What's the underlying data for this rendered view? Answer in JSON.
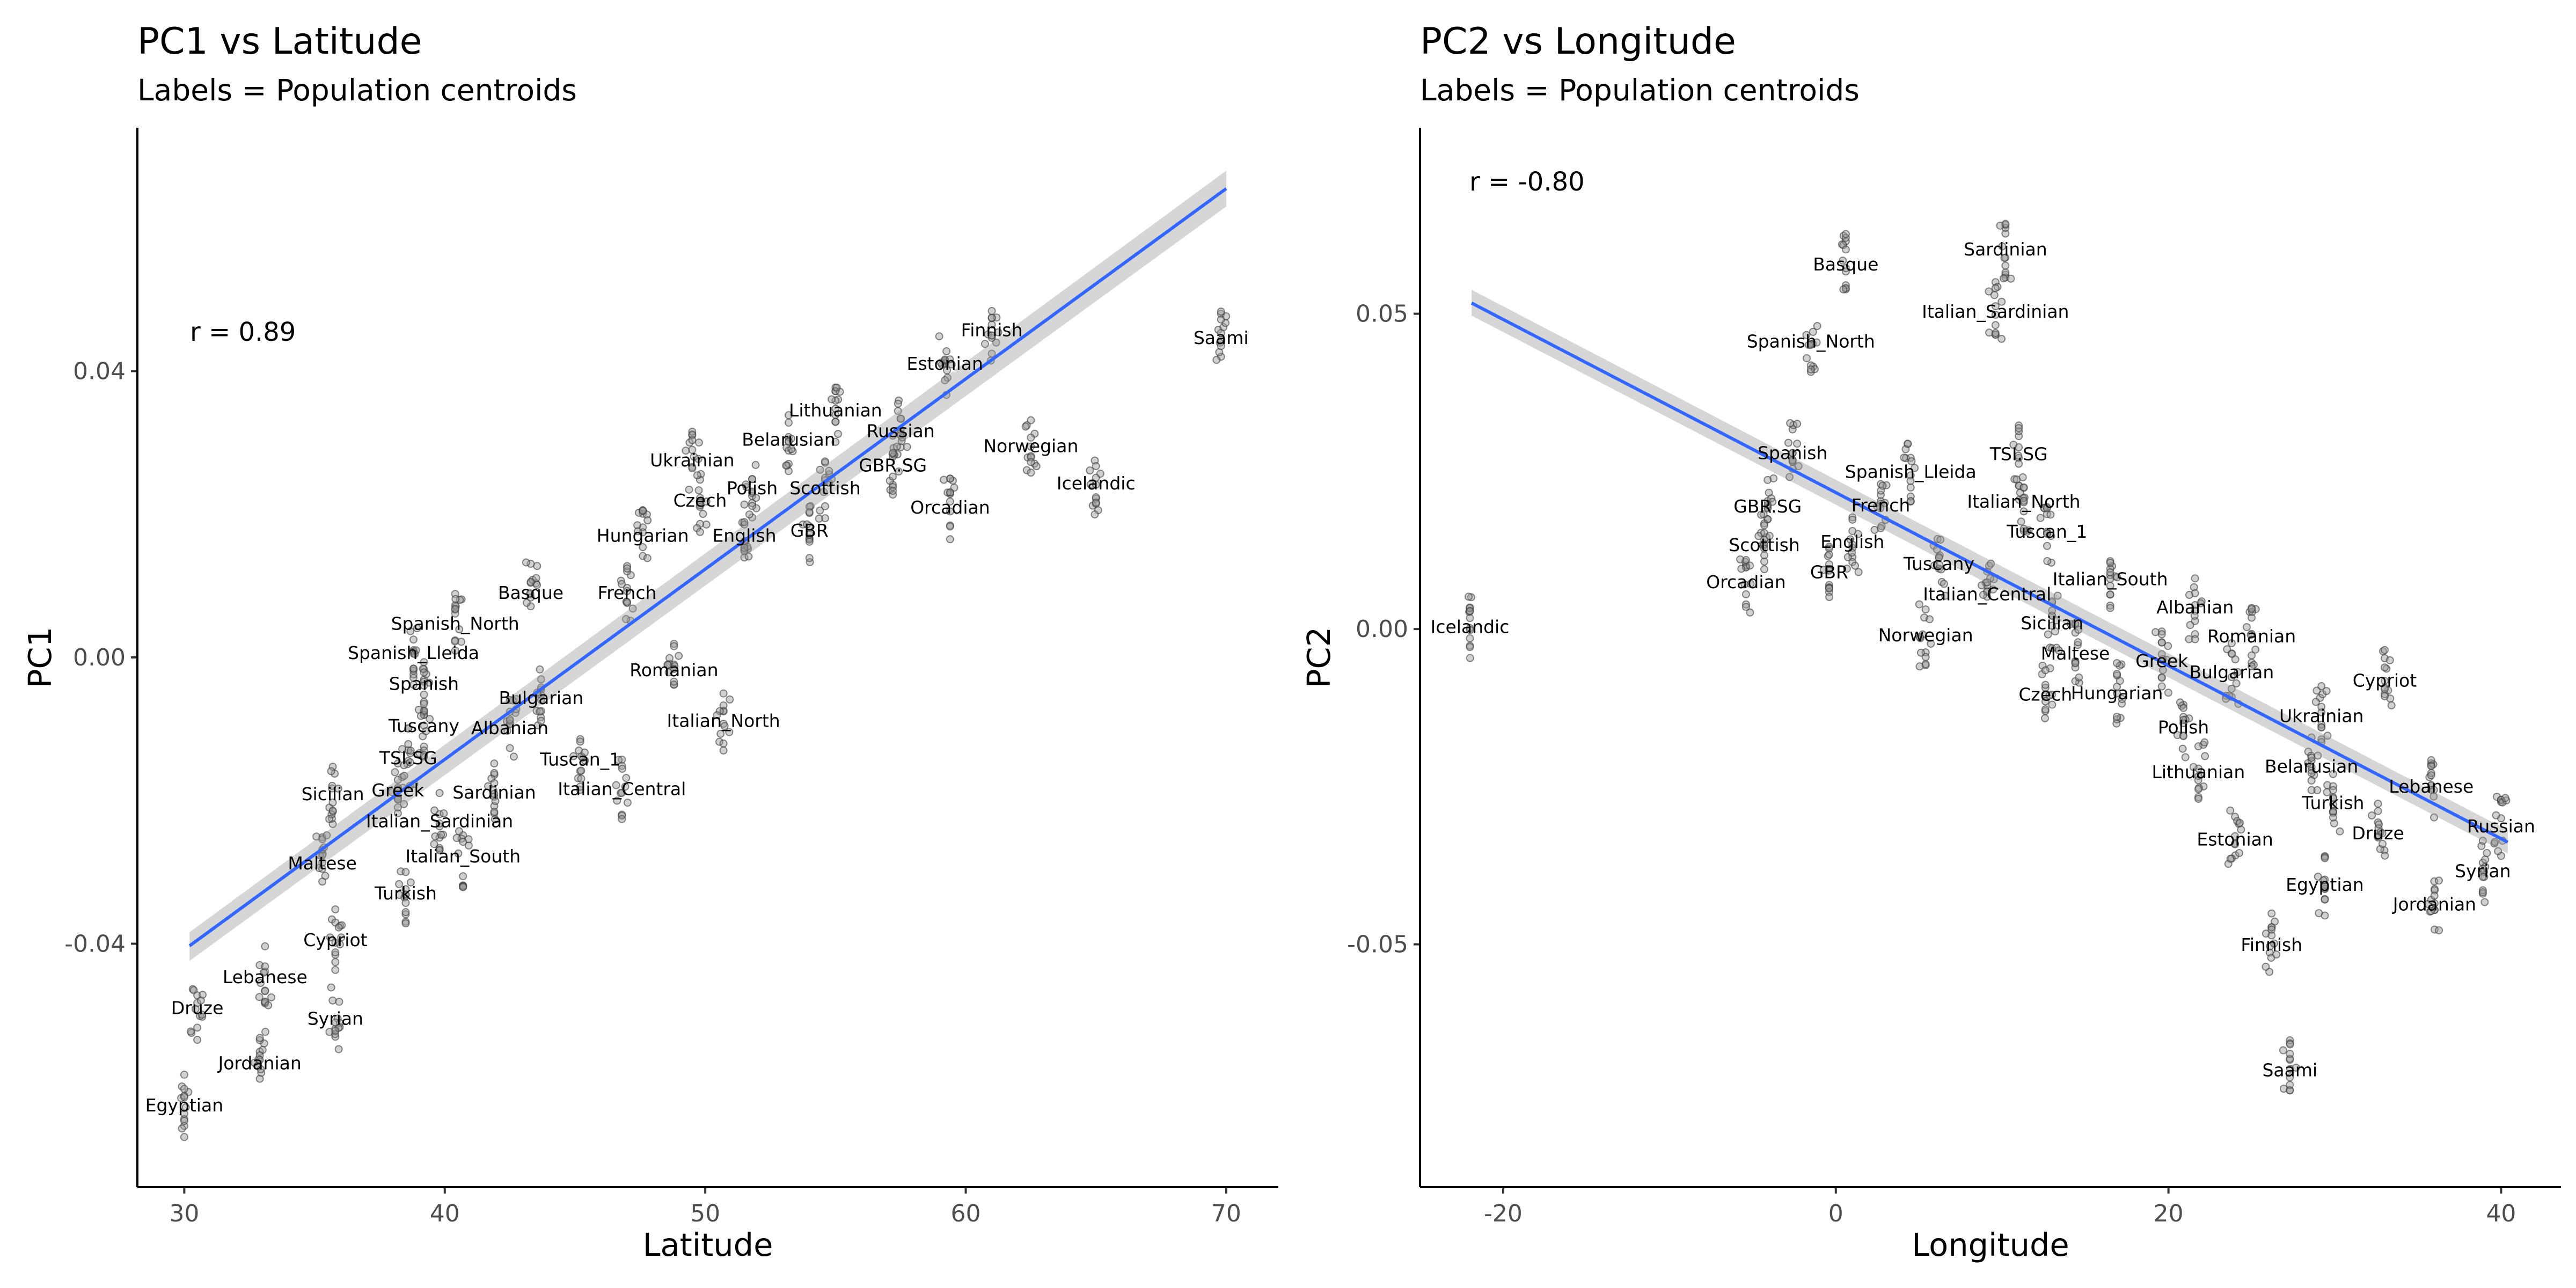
{
  "figure": {
    "panels": [
      {
        "title": "PC1 vs Latitude",
        "subtitle": "Labels = Population centroids",
        "xlabel": "Latitude",
        "ylabel": "PC1",
        "r_text": "r = 0.89"
      },
      {
        "title": "PC2 vs Longitude",
        "subtitle": "Labels = Population centroids",
        "xlabel": "Longitude",
        "ylabel": "PC2",
        "r_text": "r = -0.80"
      }
    ]
  },
  "chart_data": [
    {
      "type": "scatter",
      "title": "PC1 vs Latitude",
      "subtitle": "Labels = Population centroids",
      "xlabel": "Latitude",
      "ylabel": "PC1",
      "xlim": [
        28.2,
        72.0
      ],
      "ylim": [
        -0.074,
        0.074
      ],
      "xticks": [
        30,
        40,
        50,
        60,
        70
      ],
      "xtick_labels": [
        "30",
        "40",
        "50",
        "60",
        "70"
      ],
      "yticks": [
        -0.04,
        0.0,
        0.04
      ],
      "ytick_labels": [
        "-0.04",
        "0.00",
        "0.04"
      ],
      "grid": false,
      "annotation": "r = 0.89",
      "fit_line": {
        "x": [
          30.2,
          70.0
        ],
        "y": [
          -0.0403,
          0.0655
        ]
      },
      "fit_band": {
        "lower": [
          -0.0424,
          0.063
        ],
        "upper": [
          -0.0384,
          0.068
        ]
      },
      "centroids": [
        {
          "label": "Saami",
          "x": 69.8,
          "y": 0.0446
        },
        {
          "label": "Finnish",
          "x": 61.0,
          "y": 0.0457
        },
        {
          "label": "Estonian",
          "x": 59.2,
          "y": 0.041
        },
        {
          "label": "Lithuanian",
          "x": 55.0,
          "y": 0.0345
        },
        {
          "label": "Belarusian",
          "x": 53.2,
          "y": 0.0304
        },
        {
          "label": "Russian",
          "x": 57.5,
          "y": 0.0316
        },
        {
          "label": "Ukrainian",
          "x": 49.5,
          "y": 0.0275
        },
        {
          "label": "Norwegian",
          "x": 62.5,
          "y": 0.0295
        },
        {
          "label": "GBR.SG",
          "x": 57.2,
          "y": 0.0268
        },
        {
          "label": "Scottish",
          "x": 54.6,
          "y": 0.0236
        },
        {
          "label": "Icelandic",
          "x": 65.0,
          "y": 0.0243
        },
        {
          "label": "Polish",
          "x": 51.8,
          "y": 0.0236
        },
        {
          "label": "Czech",
          "x": 49.8,
          "y": 0.0219
        },
        {
          "label": "Orcadian",
          "x": 59.4,
          "y": 0.0209
        },
        {
          "label": "GBR",
          "x": 54.0,
          "y": 0.0177
        },
        {
          "label": "Hungarian",
          "x": 47.6,
          "y": 0.017
        },
        {
          "label": "English",
          "x": 51.5,
          "y": 0.017
        },
        {
          "label": "Basque",
          "x": 43.3,
          "y": 0.009
        },
        {
          "label": "French",
          "x": 47.0,
          "y": 0.009
        },
        {
          "label": "Spanish_North",
          "x": 40.4,
          "y": 0.0047
        },
        {
          "label": "Spanish_Lleida",
          "x": 38.8,
          "y": 0.0006
        },
        {
          "label": "Romanian",
          "x": 48.8,
          "y": -0.0018
        },
        {
          "label": "Spanish",
          "x": 39.2,
          "y": -0.0037
        },
        {
          "label": "Bulgarian",
          "x": 43.7,
          "y": -0.0057
        },
        {
          "label": "Italian_North",
          "x": 50.7,
          "y": -0.0089
        },
        {
          "label": "Tuscany",
          "x": 39.2,
          "y": -0.0096
        },
        {
          "label": "Albanian",
          "x": 42.5,
          "y": -0.0099
        },
        {
          "label": "TSI.SG",
          "x": 38.6,
          "y": -0.0141
        },
        {
          "label": "Tuscan_1",
          "x": 45.2,
          "y": -0.0143
        },
        {
          "label": "Sicilian",
          "x": 35.7,
          "y": -0.0191
        },
        {
          "label": "Greek",
          "x": 38.2,
          "y": -0.0186
        },
        {
          "label": "Sardinian",
          "x": 41.9,
          "y": -0.0189
        },
        {
          "label": "Italian_Central",
          "x": 46.8,
          "y": -0.0184
        },
        {
          "label": "Italian_Sardinian",
          "x": 39.8,
          "y": -0.0229
        },
        {
          "label": "Maltese",
          "x": 35.3,
          "y": -0.0288
        },
        {
          "label": "Italian_South",
          "x": 40.7,
          "y": -0.0278
        },
        {
          "label": "Turkish",
          "x": 38.5,
          "y": -0.033
        },
        {
          "label": "Cypriot",
          "x": 35.8,
          "y": -0.0395
        },
        {
          "label": "Lebanese",
          "x": 33.1,
          "y": -0.0447
        },
        {
          "label": "Druze",
          "x": 30.5,
          "y": -0.049
        },
        {
          "label": "Syrian",
          "x": 35.8,
          "y": -0.0505
        },
        {
          "label": "Jordanian",
          "x": 32.9,
          "y": -0.0567
        },
        {
          "label": "Egyptian",
          "x": 30.0,
          "y": -0.0626
        }
      ],
      "individuals_note": "grey semi-transparent points are individual samples around each centroid"
    },
    {
      "type": "scatter",
      "title": "PC2 vs Longitude",
      "subtitle": "Labels = Population centroids",
      "xlabel": "Longitude",
      "ylabel": "PC2",
      "xlim": [
        -25.0,
        43.6
      ],
      "ylim": [
        -0.0885,
        0.0795
      ],
      "xticks": [
        -20,
        0,
        20,
        40
      ],
      "xtick_labels": [
        "-20",
        "0",
        "20",
        "40"
      ],
      "yticks": [
        -0.05,
        0.0,
        0.05
      ],
      "ytick_labels": [
        "-0.05",
        "0.00",
        "0.05"
      ],
      "grid": false,
      "annotation": "r = -0.80",
      "fit_line": {
        "x": [
          -21.9,
          40.4
        ],
        "y": [
          0.0517,
          -0.0338
        ]
      },
      "fit_band": {
        "lower": [
          0.0497,
          -0.0356
        ],
        "upper": [
          0.0538,
          -0.0319
        ]
      },
      "centroids": [
        {
          "label": "Basque",
          "x": 0.6,
          "y": 0.0578
        },
        {
          "label": "Sardinian",
          "x": 10.2,
          "y": 0.0602
        },
        {
          "label": "Italian_Sardinian",
          "x": 9.6,
          "y": 0.0503
        },
        {
          "label": "Spanish_North",
          "x": -1.5,
          "y": 0.0456
        },
        {
          "label": "TSI.SG",
          "x": 11.0,
          "y": 0.0277
        },
        {
          "label": "Spanish",
          "x": -2.6,
          "y": 0.0279
        },
        {
          "label": "Spanish_Lleida",
          "x": 4.5,
          "y": 0.0249
        },
        {
          "label": "Italian_North",
          "x": 11.3,
          "y": 0.0202
        },
        {
          "label": "GBR.SG",
          "x": -4.1,
          "y": 0.0194
        },
        {
          "label": "French",
          "x": 2.7,
          "y": 0.0196
        },
        {
          "label": "Tuscan_1",
          "x": 12.7,
          "y": 0.0154
        },
        {
          "label": "Scottish",
          "x": -4.3,
          "y": 0.0133
        },
        {
          "label": "English",
          "x": 1.0,
          "y": 0.0138
        },
        {
          "label": "Tuscany",
          "x": 6.2,
          "y": 0.0103
        },
        {
          "label": "GBR",
          "x": -0.4,
          "y": 0.009
        },
        {
          "label": "Orcadian",
          "x": -5.4,
          "y": 0.0074
        },
        {
          "label": "Italian_South",
          "x": 16.5,
          "y": 0.0079
        },
        {
          "label": "Italian_Central",
          "x": 9.1,
          "y": 0.0055
        },
        {
          "label": "Albanian",
          "x": 21.6,
          "y": 0.0034
        },
        {
          "label": "Sicilian",
          "x": 13.0,
          "y": 0.0009
        },
        {
          "label": "Romanian",
          "x": 25.0,
          "y": -0.0012
        },
        {
          "label": "Norwegian",
          "x": 5.4,
          "y": -0.001
        },
        {
          "label": "Maltese",
          "x": 14.4,
          "y": -0.0039
        },
        {
          "label": "Greek",
          "x": 19.6,
          "y": -0.0051
        },
        {
          "label": "Bulgarian",
          "x": 23.8,
          "y": -0.0069
        },
        {
          "label": "Cypriot",
          "x": 33.0,
          "y": -0.0082
        },
        {
          "label": "Czech",
          "x": 12.6,
          "y": -0.0104
        },
        {
          "label": "Hungarian",
          "x": 16.9,
          "y": -0.0102
        },
        {
          "label": "Ukrainian",
          "x": 29.2,
          "y": -0.0138
        },
        {
          "label": "Polish",
          "x": 20.9,
          "y": -0.0156
        },
        {
          "label": "Lithuanian",
          "x": 21.8,
          "y": -0.0227
        },
        {
          "label": "Belarusian",
          "x": 28.6,
          "y": -0.0218
        },
        {
          "label": "Lebanese",
          "x": 35.8,
          "y": -0.025
        },
        {
          "label": "Turkish",
          "x": 29.9,
          "y": -0.0276
        },
        {
          "label": "Russian",
          "x": 40.0,
          "y": -0.0313
        },
        {
          "label": "Estonian",
          "x": 24.0,
          "y": -0.0334
        },
        {
          "label": "Druze",
          "x": 32.6,
          "y": -0.0324
        },
        {
          "label": "Syrian",
          "x": 38.9,
          "y": -0.0384
        },
        {
          "label": "Egyptian",
          "x": 29.4,
          "y": -0.0406
        },
        {
          "label": "Jordanian",
          "x": 36.0,
          "y": -0.0437
        },
        {
          "label": "Finnish",
          "x": 26.2,
          "y": -0.0501
        },
        {
          "label": "Saami",
          "x": 27.3,
          "y": -0.07
        },
        {
          "label": "Icelandic",
          "x": -22.0,
          "y": 0.0003
        }
      ],
      "individuals_note": "grey semi-transparent points are individual samples around each centroid"
    }
  ]
}
